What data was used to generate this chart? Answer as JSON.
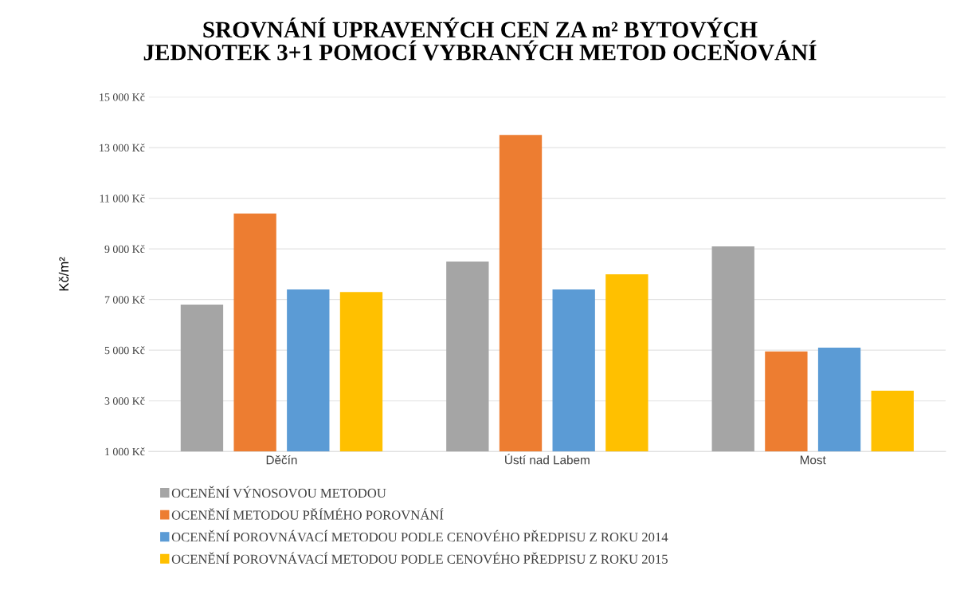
{
  "chart_data": {
    "type": "bar",
    "title": "SROVNÁNÍ UPRAVENÝCH CEN ZA m² BYTOVÝCH\nJEDNOTEK 3+1 POMOCÍ VYBRANÝCH METOD OCEŇOVÁNÍ",
    "ylabel": "Kč/m²",
    "categories": [
      "Děčín",
      "Ústí nad Labem",
      "Most"
    ],
    "series": [
      {
        "name": "OCENĚNÍ VÝNOSOVOU METODOU",
        "color": "#a5a5a5",
        "values": [
          6800,
          8500,
          9100
        ]
      },
      {
        "name": "OCENĚNÍ METODOU PŘÍMÉHO POROVNÁNÍ",
        "color": "#ed7d31",
        "values": [
          10400,
          13500,
          4950
        ]
      },
      {
        "name": "OCENĚNÍ POROVNÁVACÍ METODOU PODLE CENOVÉHO PŘEDPISU Z ROKU 2014",
        "color": "#5b9bd5",
        "values": [
          7400,
          7400,
          5100
        ]
      },
      {
        "name": "OCENĚNÍ POROVNÁVACÍ METODOU PODLE CENOVÉHO PŘEDPISU Z ROKU 2015",
        "color": "#ffc000",
        "values": [
          7300,
          8000,
          3400
        ]
      }
    ],
    "ylim": [
      1000,
      15000
    ],
    "yticks": [
      {
        "value": 1000,
        "label": "1 000 Kč"
      },
      {
        "value": 3000,
        "label": "3 000 Kč"
      },
      {
        "value": 5000,
        "label": "5 000 Kč"
      },
      {
        "value": 7000,
        "label": "7 000 Kč"
      },
      {
        "value": 9000,
        "label": "9 000 Kč"
      },
      {
        "value": 11000,
        "label": "11 000 Kč"
      },
      {
        "value": 13000,
        "label": "13 000 Kč"
      },
      {
        "value": 15000,
        "label": "15 000 Kč"
      }
    ],
    "grid": "y",
    "legend": "bottom"
  }
}
